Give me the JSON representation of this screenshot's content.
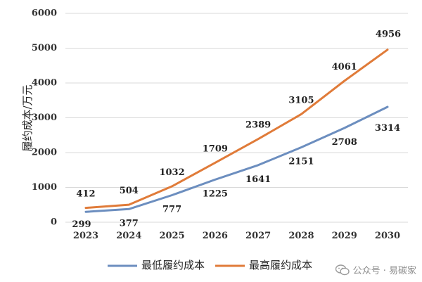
{
  "chart_data": {
    "type": "line",
    "categories": [
      "2023",
      "2024",
      "2025",
      "2026",
      "2027",
      "2028",
      "2029",
      "2030"
    ],
    "series": [
      {
        "name": "最低履约成本",
        "color": "#6c8ebf",
        "values": [
          299,
          377,
          777,
          1225,
          1641,
          2151,
          2708,
          3314
        ]
      },
      {
        "name": "最高履约成本",
        "color": "#e07b39",
        "values": [
          412,
          504,
          1032,
          1709,
          2389,
          3105,
          4061,
          4956
        ]
      }
    ],
    "ylabel": "履约成本/万元",
    "xlabel": "",
    "ylim": [
      0,
      6000
    ],
    "yticks": [
      0,
      1000,
      2000,
      3000,
      4000,
      5000,
      6000
    ],
    "grid": true,
    "legend_position": "bottom"
  },
  "watermark": {
    "text": "公众号 · 易碳家",
    "icon": "wechat-icon"
  }
}
